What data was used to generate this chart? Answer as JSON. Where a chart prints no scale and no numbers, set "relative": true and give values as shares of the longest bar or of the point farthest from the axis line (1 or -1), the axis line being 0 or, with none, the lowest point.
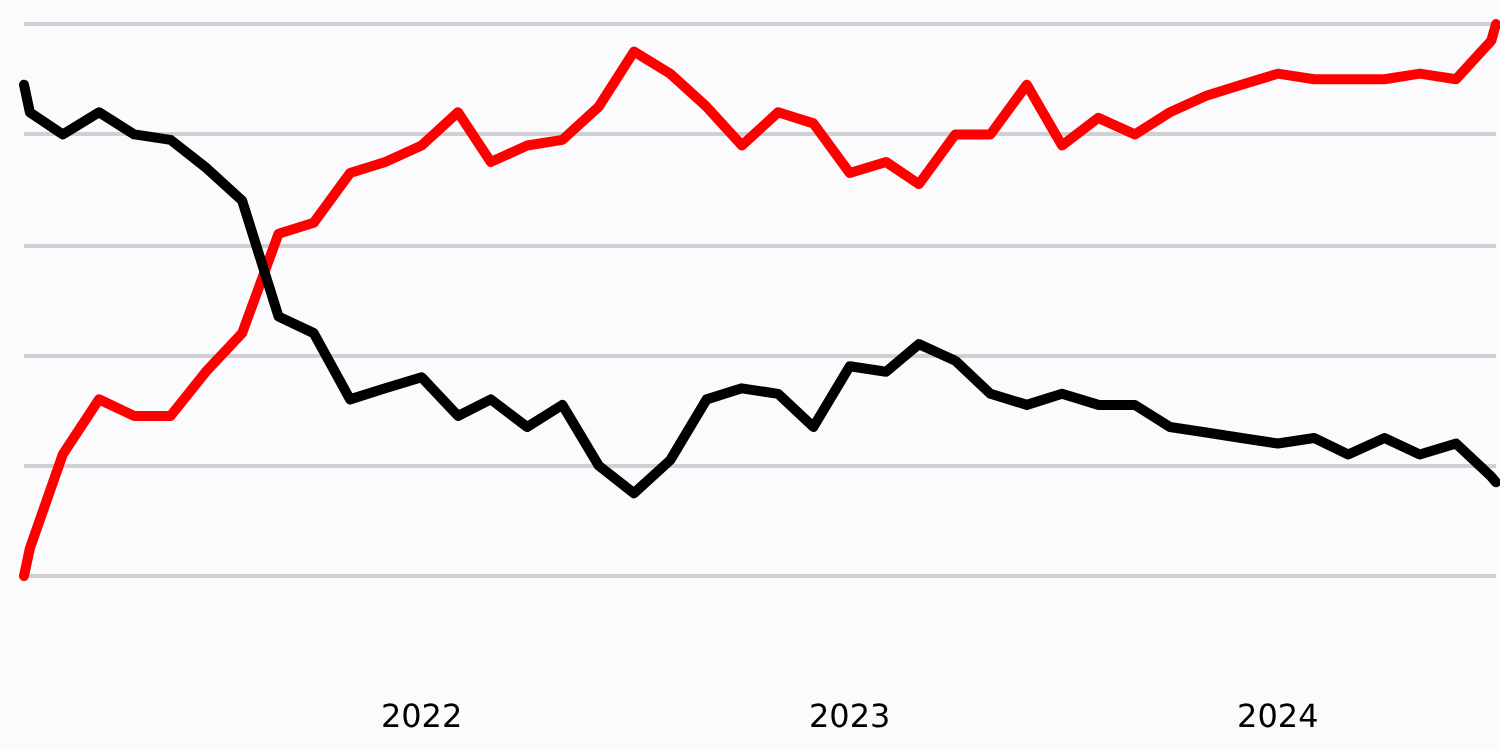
{
  "chart_data": {
    "type": "line",
    "relative": true,
    "grid": "y",
    "marker": "none",
    "line_style": "solid",
    "x": [
      "2021-01-27",
      "2021-02",
      "2021-03",
      "2021-04",
      "2021-05",
      "2021-06",
      "2021-07",
      "2021-08",
      "2021-09",
      "2021-10",
      "2021-11",
      "2021-12",
      "2022-01",
      "2022-02",
      "2022-03",
      "2022-04",
      "2022-05",
      "2022-06",
      "2022-07",
      "2022-08",
      "2022-09",
      "2022-10",
      "2022-11",
      "2022-12",
      "2023-01",
      "2023-02",
      "2023-03",
      "2023-04",
      "2023-05",
      "2023-06",
      "2023-07",
      "2023-08",
      "2023-09",
      "2023-10",
      "2023-11",
      "2023-12",
      "2024-01",
      "2024-02",
      "2024-03",
      "2024-04",
      "2024-05",
      "2024-06",
      "2024-07",
      "2024-07-05"
    ],
    "xlim": [
      "2021-01-27",
      "2024-07-05"
    ],
    "xticks": [
      {
        "value": "2022-01-01",
        "label": "2022"
      },
      {
        "value": "2023-01-01",
        "label": "2023"
      },
      {
        "value": "2024-01-01",
        "label": "2024"
      }
    ],
    "series": [
      {
        "color": "#ff0000",
        "values": [
          0,
          0.05,
          0.22,
          0.32,
          0.29,
          0.29,
          0.37,
          0.44,
          0.62,
          0.64,
          0.73,
          0.75,
          0.78,
          0.84,
          0.75,
          0.78,
          0.79,
          0.85,
          0.95,
          0.91,
          0.85,
          0.78,
          0.84,
          0.82,
          0.73,
          0.75,
          0.71,
          0.8,
          0.8,
          0.89,
          0.78,
          0.83,
          0.8,
          0.84,
          0.87,
          0.89,
          0.91,
          0.9,
          0.9,
          0.9,
          0.91,
          0.9,
          0.97,
          1
        ]
      },
      {
        "color": "#000000",
        "values": [
          0.89,
          0.84,
          0.8,
          0.84,
          0.8,
          0.79,
          0.74,
          0.68,
          0.47,
          0.44,
          0.32,
          0.34,
          0.36,
          0.29,
          0.32,
          0.27,
          0.31,
          0.2,
          0.15,
          0.21,
          0.32,
          0.34,
          0.33,
          0.27,
          0.38,
          0.37,
          0.42,
          0.39,
          0.33,
          0.31,
          0.33,
          0.31,
          0.31,
          0.27,
          0.26,
          0.25,
          0.24,
          0.25,
          0.22,
          0.25,
          0.22,
          0.24,
          0.18,
          0.17
        ]
      }
    ]
  }
}
